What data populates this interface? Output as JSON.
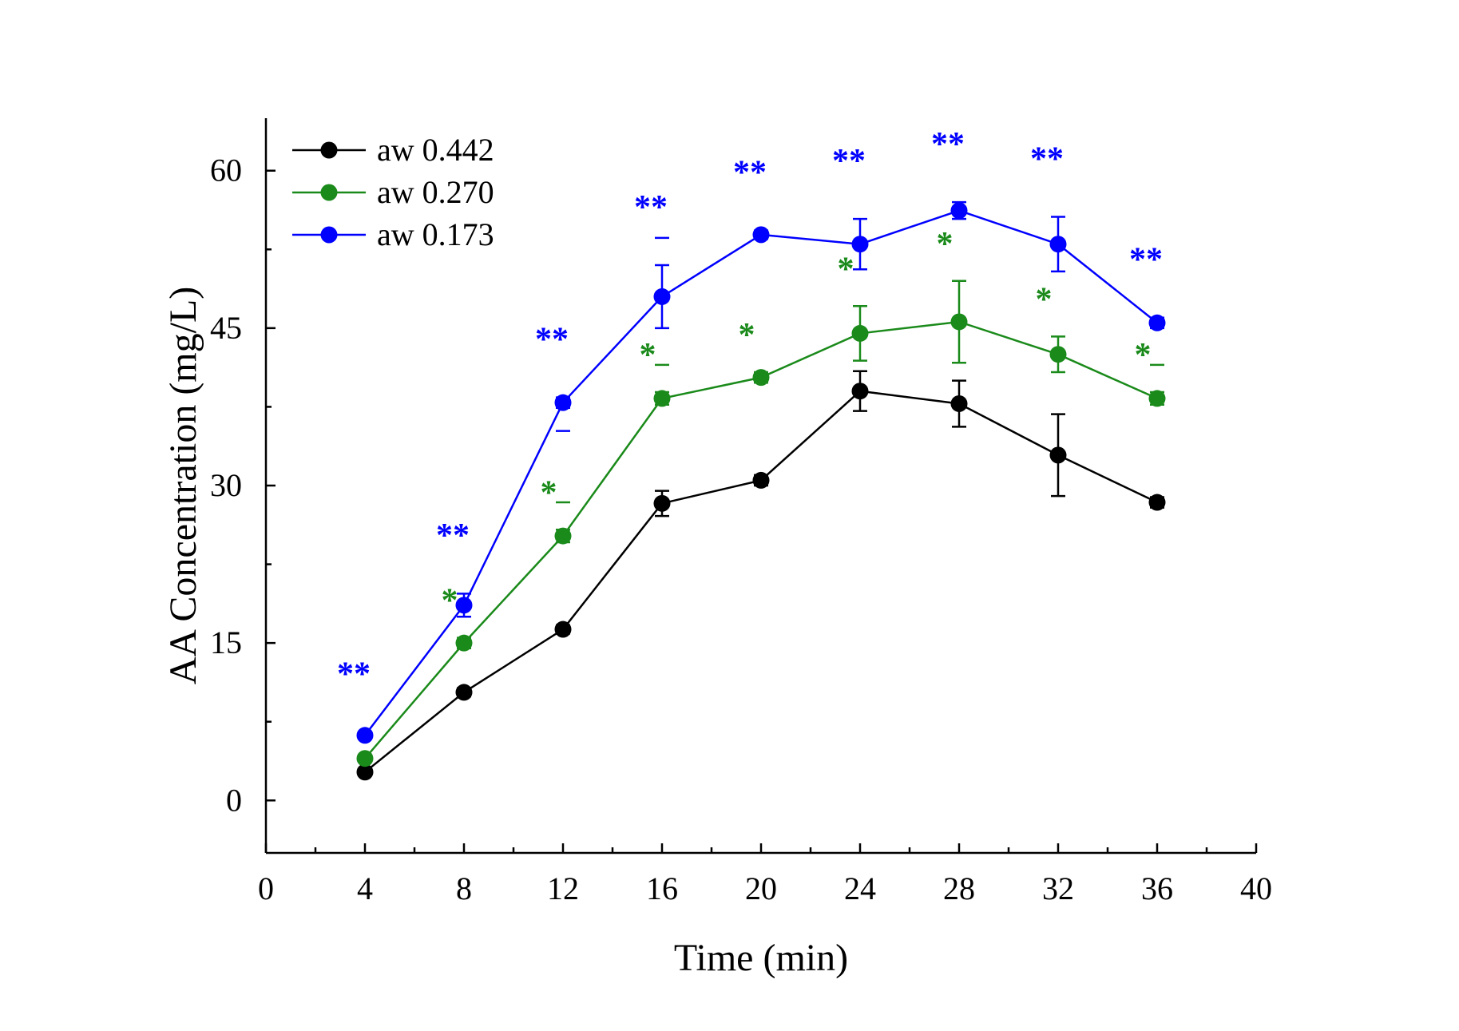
{
  "chart_data": {
    "type": "line",
    "title": "",
    "xlabel": "Time (min)",
    "ylabel": "AA Concentration (mg/L)",
    "xlim": [
      0,
      40
    ],
    "ylim": [
      -5,
      65
    ],
    "x_ticks": [
      0,
      4,
      8,
      12,
      16,
      20,
      24,
      28,
      32,
      36,
      40
    ],
    "y_ticks": [
      0,
      15,
      30,
      45,
      60
    ],
    "grid": false,
    "legend_position": "top-left",
    "x": [
      4,
      8,
      12,
      16,
      20,
      24,
      28,
      32,
      36
    ],
    "series": [
      {
        "name": "aw 0.442",
        "color": "#000000",
        "values": [
          2.7,
          10.3,
          16.3,
          28.3,
          30.5,
          39.0,
          37.8,
          32.9,
          28.4
        ],
        "errors": [
          0.3,
          0.4,
          0.4,
          1.2,
          0.5,
          1.9,
          2.2,
          3.9,
          0.5
        ],
        "markers": [],
        "upper_caps": [
          false,
          false,
          false,
          false,
          false,
          false,
          false,
          false,
          false
        ]
      },
      {
        "name": "aw 0.270",
        "color": "#1a8a1a",
        "values": [
          4.0,
          15.0,
          25.2,
          38.3,
          40.3,
          44.5,
          45.6,
          42.5,
          38.3
        ],
        "errors": [
          0.3,
          0.5,
          0.6,
          0.6,
          0.5,
          2.6,
          3.9,
          1.7,
          0.6
        ],
        "markers": [
          "",
          "*",
          "*",
          "*",
          "*",
          "*",
          "*",
          "*",
          "*"
        ],
        "upper_caps": [
          false,
          false,
          true,
          true,
          false,
          false,
          false,
          false,
          true
        ]
      },
      {
        "name": "aw 0.173",
        "color": "#0000ff",
        "values": [
          6.2,
          18.6,
          37.9,
          48.0,
          53.9,
          53.0,
          56.2,
          53.0,
          45.5
        ],
        "errors": [
          0.3,
          1.1,
          0.5,
          3.0,
          0.4,
          2.4,
          0.8,
          2.6,
          0.5
        ],
        "markers": [
          "**",
          "**",
          "**",
          "**",
          "**",
          "**",
          "**",
          "**",
          "**"
        ],
        "upper_caps": [
          false,
          false,
          false,
          true,
          false,
          false,
          false,
          false,
          false
        ],
        "lower_caps": [
          false,
          false,
          true,
          false,
          false,
          false,
          false,
          false,
          false
        ]
      }
    ]
  }
}
